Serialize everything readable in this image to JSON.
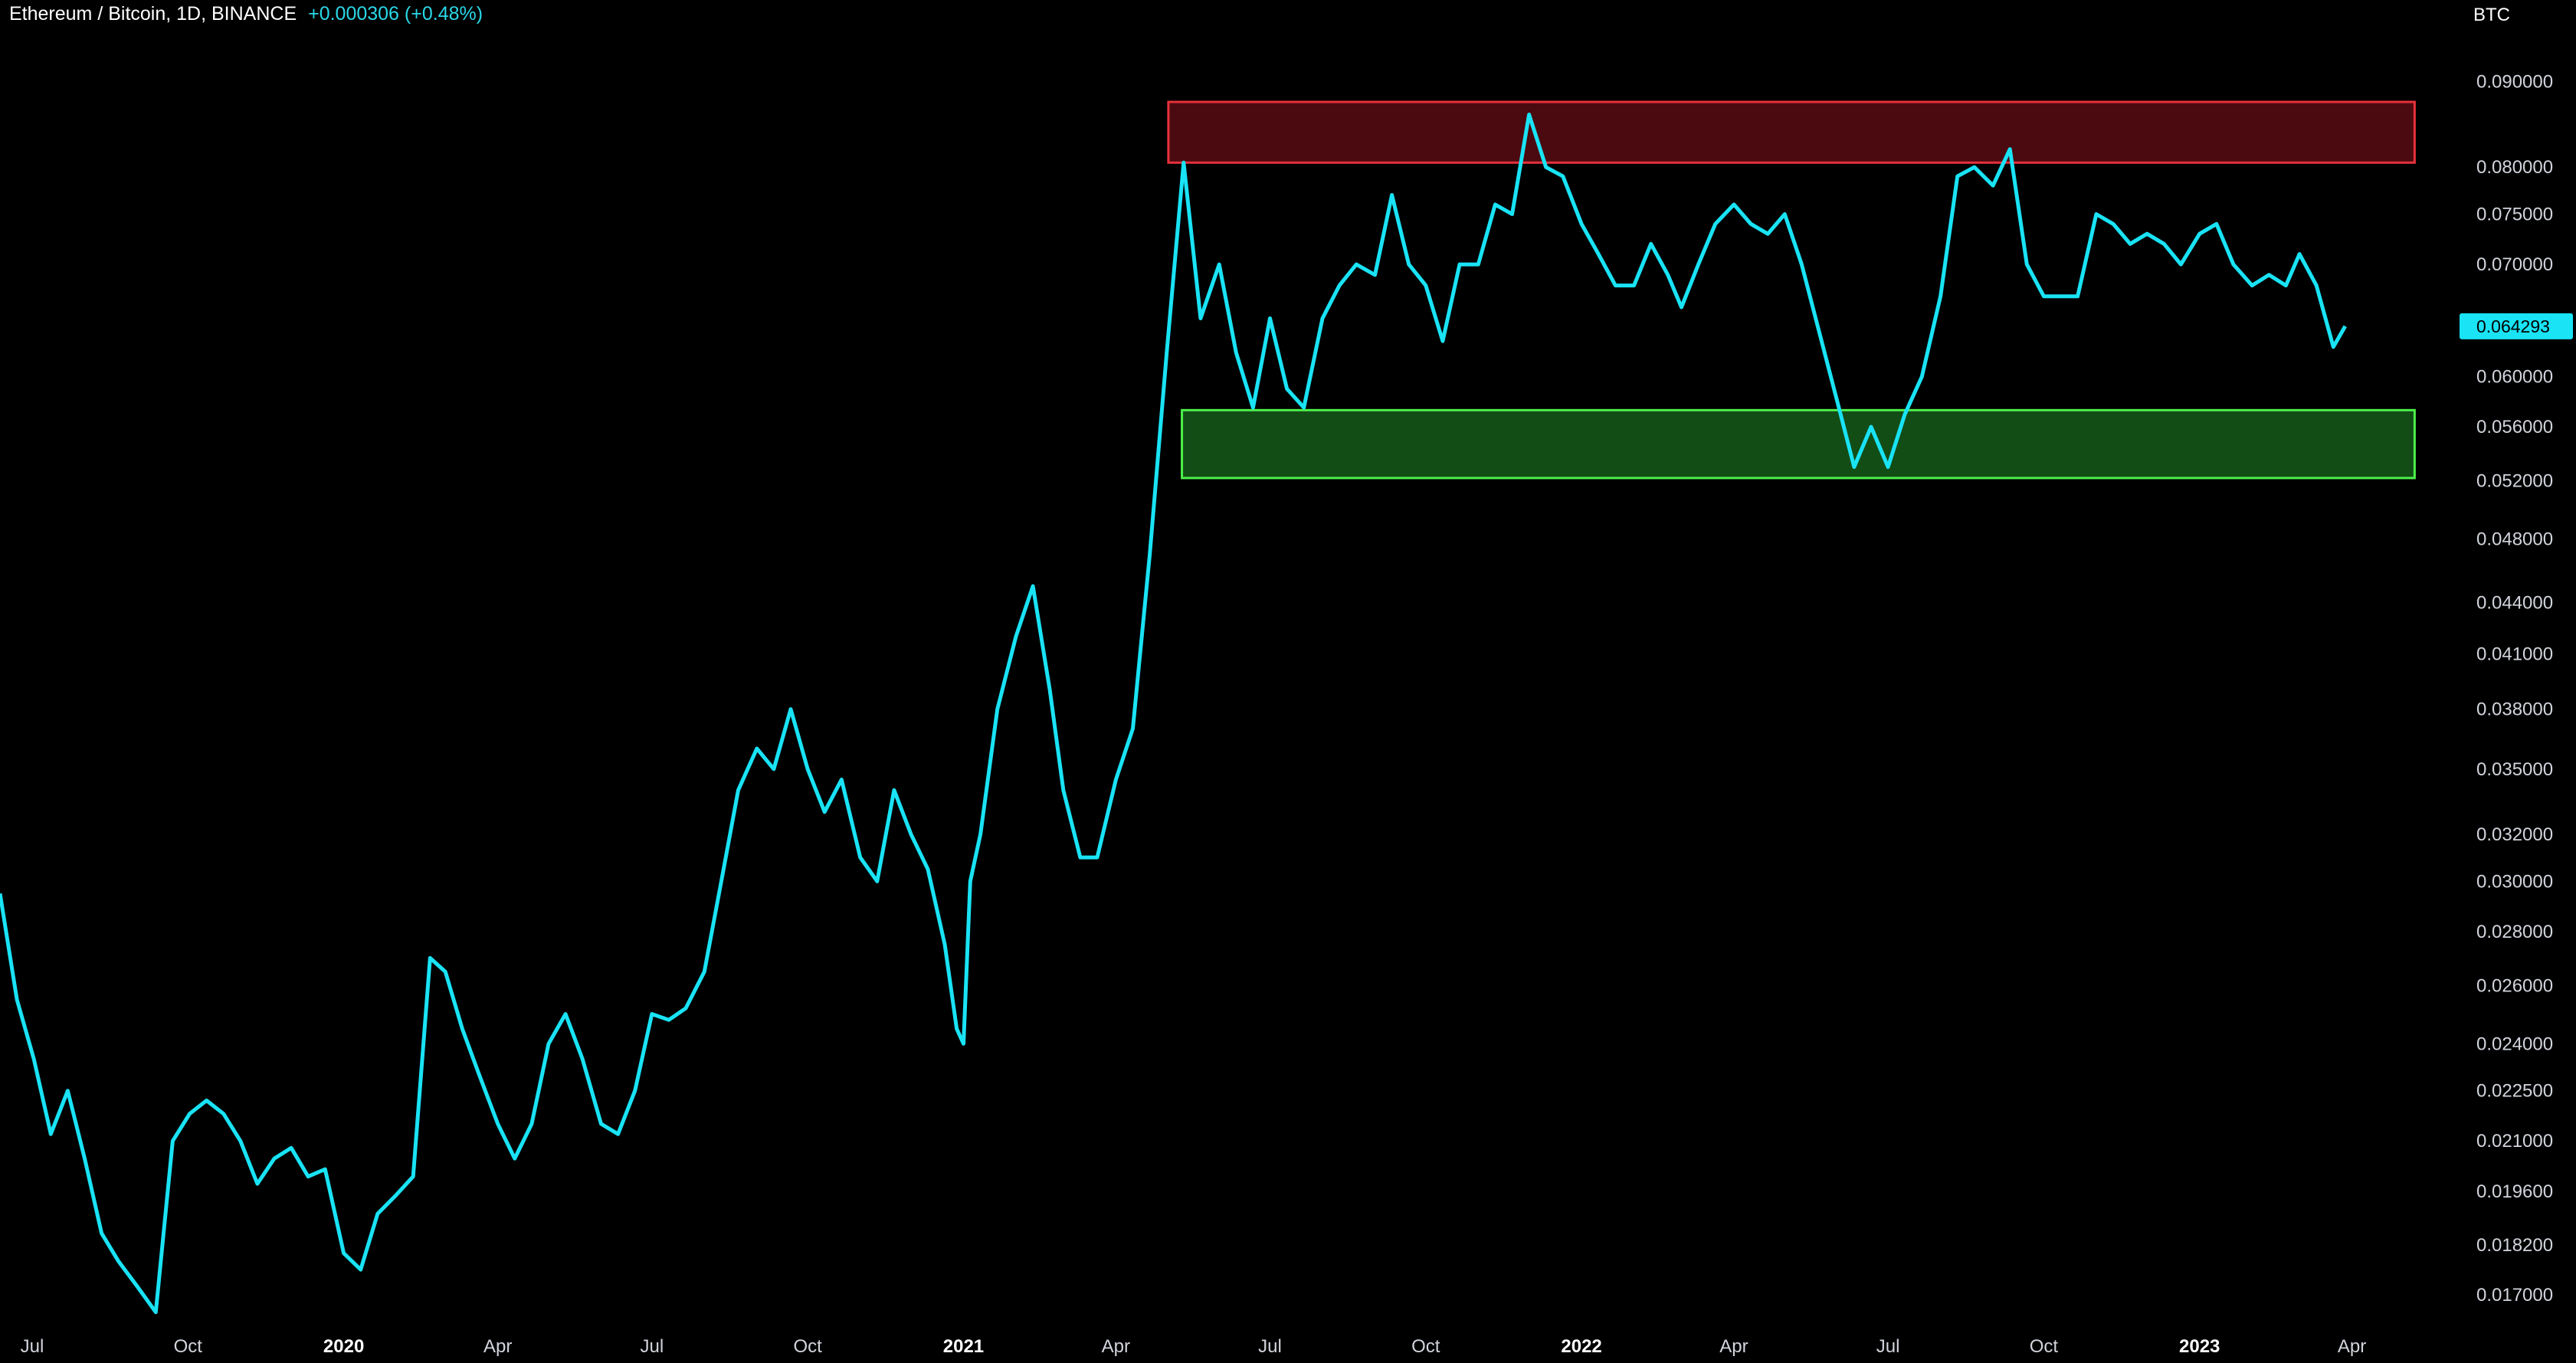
{
  "header": {
    "symbol": "Ethereum / Bitcoin, 1D, BINANCE",
    "change": "+0.000306 (+0.48%)"
  },
  "colors": {
    "line": "#19e3f5",
    "background": "#000000",
    "resistance_fill": "#4a0a10",
    "resistance_border": "#e8313b",
    "support_fill": "#124d16",
    "support_border": "#4df04a",
    "last_price_bg": "#19e3f5"
  },
  "chart_data": {
    "type": "line",
    "scale": "log",
    "unit": "BTC",
    "series": [
      {
        "name": "",
        "x": [
          "2019-06-12",
          "2019-06-22",
          "2019-07-02",
          "2019-07-12",
          "2019-07-22",
          "2019-08-01",
          "2019-08-11",
          "2019-08-21",
          "2019-09-01",
          "2019-09-12",
          "2019-09-22",
          "2019-10-02",
          "2019-10-12",
          "2019-10-22",
          "2019-11-01",
          "2019-11-11",
          "2019-11-21",
          "2019-12-01",
          "2019-12-11",
          "2019-12-21",
          "2020-01-01",
          "2020-01-11",
          "2020-01-21",
          "2020-02-01",
          "2020-02-11",
          "2020-02-21",
          "2020-03-01",
          "2020-03-11",
          "2020-03-21",
          "2020-04-01",
          "2020-04-11",
          "2020-04-21",
          "2020-05-01",
          "2020-05-11",
          "2020-05-21",
          "2020-06-01",
          "2020-06-11",
          "2020-06-21",
          "2020-07-01",
          "2020-07-11",
          "2020-07-21",
          "2020-08-01",
          "2020-08-11",
          "2020-08-21",
          "2020-09-01",
          "2020-09-11",
          "2020-09-21",
          "2020-10-01",
          "2020-10-11",
          "2020-10-21",
          "2020-11-01",
          "2020-11-11",
          "2020-11-21",
          "2020-12-01",
          "2020-12-11",
          "2020-12-21",
          "2020-12-28",
          "2021-01-01",
          "2021-01-05",
          "2021-01-11",
          "2021-01-21",
          "2021-02-01",
          "2021-02-11",
          "2021-02-21",
          "2021-03-01",
          "2021-03-11",
          "2021-03-21",
          "2021-04-01",
          "2021-04-11",
          "2021-04-21",
          "2021-05-01",
          "2021-05-11",
          "2021-05-21",
          "2021-06-01",
          "2021-06-11",
          "2021-06-21",
          "2021-07-01",
          "2021-07-11",
          "2021-07-21",
          "2021-08-01",
          "2021-08-11",
          "2021-08-21",
          "2021-09-01",
          "2021-09-11",
          "2021-09-21",
          "2021-10-01",
          "2021-10-11",
          "2021-10-21",
          "2021-11-01",
          "2021-11-11",
          "2021-11-21",
          "2021-12-01",
          "2021-12-11",
          "2021-12-21",
          "2022-01-01",
          "2022-01-11",
          "2022-01-21",
          "2022-02-01",
          "2022-02-11",
          "2022-02-21",
          "2022-03-01",
          "2022-03-11",
          "2022-03-21",
          "2022-04-01",
          "2022-04-11",
          "2022-04-21",
          "2022-05-01",
          "2022-05-11",
          "2022-05-21",
          "2022-06-01",
          "2022-06-11",
          "2022-06-21",
          "2022-07-01",
          "2022-07-11",
          "2022-07-21",
          "2022-08-01",
          "2022-08-11",
          "2022-08-21",
          "2022-09-01",
          "2022-09-11",
          "2022-09-21",
          "2022-10-01",
          "2022-10-11",
          "2022-10-21",
          "2022-11-01",
          "2022-11-11",
          "2022-11-21",
          "2022-12-01",
          "2022-12-11",
          "2022-12-21",
          "2023-01-01",
          "2023-01-11",
          "2023-01-21",
          "2023-02-01",
          "2023-02-11",
          "2023-02-21",
          "2023-03-01",
          "2023-03-11",
          "2023-03-21",
          "2023-03-28"
        ],
        "values": [
          0.0295,
          0.0255,
          0.0235,
          0.0212,
          0.0225,
          0.0205,
          0.0185,
          0.0178,
          0.0172,
          0.0166,
          0.021,
          0.0218,
          0.0222,
          0.0218,
          0.021,
          0.0198,
          0.0205,
          0.0208,
          0.02,
          0.0202,
          0.018,
          0.0176,
          0.019,
          0.0195,
          0.02,
          0.027,
          0.0265,
          0.0245,
          0.023,
          0.0215,
          0.0205,
          0.0215,
          0.024,
          0.025,
          0.0235,
          0.0215,
          0.0212,
          0.0225,
          0.025,
          0.0248,
          0.0252,
          0.0265,
          0.03,
          0.034,
          0.036,
          0.035,
          0.038,
          0.035,
          0.033,
          0.0345,
          0.031,
          0.03,
          0.034,
          0.032,
          0.0305,
          0.0275,
          0.0245,
          0.024,
          0.03,
          0.032,
          0.038,
          0.042,
          0.045,
          0.039,
          0.034,
          0.031,
          0.031,
          0.0345,
          0.037,
          0.047,
          0.062,
          0.0805,
          0.065,
          0.07,
          0.062,
          0.0575,
          0.065,
          0.059,
          0.0575,
          0.065,
          0.068,
          0.07,
          0.069,
          0.077,
          0.07,
          0.068,
          0.063,
          0.07,
          0.07,
          0.076,
          0.075,
          0.086,
          0.08,
          0.079,
          0.074,
          0.071,
          0.068,
          0.068,
          0.072,
          0.069,
          0.066,
          0.07,
          0.074,
          0.076,
          0.074,
          0.073,
          0.075,
          0.07,
          0.064,
          0.058,
          0.053,
          0.056,
          0.053,
          0.057,
          0.06,
          0.067,
          0.079,
          0.08,
          0.078,
          0.082,
          0.07,
          0.067,
          0.067,
          0.067,
          0.075,
          0.074,
          0.072,
          0.073,
          0.072,
          0.07,
          0.073,
          0.074,
          0.07,
          0.068,
          0.069,
          0.068,
          0.071,
          0.068,
          0.0625,
          0.0643
        ]
      }
    ],
    "zones": [
      {
        "type": "resistance",
        "from": "2021-05-02",
        "to": "2023-05-08",
        "low": 0.0805,
        "high": 0.0875
      },
      {
        "type": "support",
        "from": "2021-05-10",
        "to": "2023-05-08",
        "low": 0.0522,
        "high": 0.0573
      }
    ],
    "xlim": [
      "2019-06-12",
      "2023-05-30"
    ],
    "ylim": [
      0.0163,
      0.0935
    ],
    "y_ticks": [
      0.09,
      0.08,
      0.075,
      0.07,
      0.06,
      0.056,
      0.052,
      0.048,
      0.044,
      0.041,
      0.038,
      0.035,
      0.032,
      0.03,
      0.028,
      0.026,
      0.024,
      0.0225,
      0.021,
      0.0196,
      0.0182,
      0.017
    ],
    "y_tick_labels": [
      "0.090000",
      "0.080000",
      "0.075000",
      "0.070000",
      "0.060000",
      "0.056000",
      "0.052000",
      "0.048000",
      "0.044000",
      "0.041000",
      "0.038000",
      "0.035000",
      "0.032000",
      "0.030000",
      "0.028000",
      "0.026000",
      "0.024000",
      "0.022500",
      "0.021000",
      "0.019600",
      "0.018200",
      "0.017000"
    ],
    "x_ticks": [
      {
        "label": "Jul",
        "date": "2019-07-01",
        "year": false
      },
      {
        "label": "Oct",
        "date": "2019-10-01",
        "year": false
      },
      {
        "label": "2020",
        "date": "2020-01-01",
        "year": true
      },
      {
        "label": "Apr",
        "date": "2020-04-01",
        "year": false
      },
      {
        "label": "Jul",
        "date": "2020-07-01",
        "year": false
      },
      {
        "label": "Oct",
        "date": "2020-10-01",
        "year": false
      },
      {
        "label": "2021",
        "date": "2021-01-01",
        "year": true
      },
      {
        "label": "Apr",
        "date": "2021-04-01",
        "year": false
      },
      {
        "label": "Jul",
        "date": "2021-07-01",
        "year": false
      },
      {
        "label": "Oct",
        "date": "2021-10-01",
        "year": false
      },
      {
        "label": "2022",
        "date": "2022-01-01",
        "year": true
      },
      {
        "label": "Apr",
        "date": "2022-04-01",
        "year": false
      },
      {
        "label": "Jul",
        "date": "2022-07-01",
        "year": false
      },
      {
        "label": "Oct",
        "date": "2022-10-01",
        "year": false
      },
      {
        "label": "2023",
        "date": "2023-01-01",
        "year": true
      },
      {
        "label": "Apr",
        "date": "2023-04-01",
        "year": false
      }
    ],
    "last_price": 0.064293,
    "last_price_label": "0.064293",
    "grid": false
  }
}
